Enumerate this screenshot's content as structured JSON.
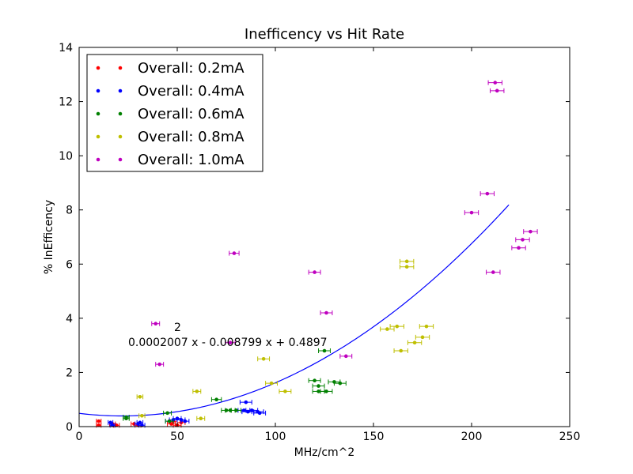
{
  "chart_data": {
    "type": "scatter",
    "title": "Inefficency vs Hit Rate",
    "xlabel": "MHz/cm^2",
    "ylabel": "% InEfficency",
    "xlim": [
      0,
      250
    ],
    "ylim": [
      0,
      14
    ],
    "xticks": [
      "0",
      "50",
      "100",
      "150",
      "200",
      "250"
    ],
    "yticks": [
      "0",
      "2",
      "4",
      "6",
      "8",
      "10",
      "12",
      "14"
    ],
    "grid": false,
    "legend_position": "top-left",
    "annotation": {
      "exponent": "2",
      "equation": "0.0002007 x - 0.008799 x + 0.4897"
    },
    "fit": {
      "coefficients": [
        0.0002007,
        -0.008799,
        0.4897
      ],
      "x_range": [
        0,
        219
      ],
      "color": "#0000ff"
    },
    "series": [
      {
        "name": "Overall: 0.2mA",
        "color": "#ff0000",
        "points": [
          [
            10,
            0.2
          ],
          [
            10,
            0.05
          ],
          [
            17,
            0.1
          ],
          [
            19,
            0.05
          ],
          [
            28,
            0.1
          ],
          [
            30,
            0.05
          ],
          [
            47,
            0.1
          ],
          [
            48,
            0.2
          ],
          [
            50,
            0.05
          ],
          [
            52,
            0.15
          ]
        ],
        "xerr": [
          1.2,
          1.2,
          1.5,
          1.5,
          1.5,
          1.5,
          2,
          2,
          2,
          2
        ]
      },
      {
        "name": "Overall: 0.4mA",
        "color": "#0000ff",
        "points": [
          [
            16,
            0.15
          ],
          [
            17,
            0.05
          ],
          [
            30,
            0.1
          ],
          [
            31,
            0.15
          ],
          [
            32,
            0.05
          ],
          [
            46,
            0.2
          ],
          [
            48,
            0.25
          ],
          [
            50,
            0.3
          ],
          [
            52,
            0.25
          ],
          [
            54,
            0.2
          ],
          [
            84,
            0.6
          ],
          [
            86,
            0.55
          ],
          [
            88,
            0.6
          ],
          [
            91,
            0.55
          ],
          [
            92,
            0.5
          ],
          [
            85,
            0.9
          ]
        ],
        "xerr": [
          1.2,
          1.2,
          1.5,
          1.5,
          1.5,
          2,
          2,
          2,
          2,
          2,
          3,
          3,
          3,
          3,
          3,
          3
        ]
      },
      {
        "name": "Overall: 0.6mA",
        "color": "#008000",
        "points": [
          [
            24,
            0.35
          ],
          [
            24,
            0.3
          ],
          [
            45,
            0.5
          ],
          [
            46,
            0.2
          ],
          [
            70,
            1.0
          ],
          [
            75,
            0.6
          ],
          [
            77,
            0.6
          ],
          [
            80,
            0.6
          ],
          [
            120,
            1.7
          ],
          [
            122,
            1.5
          ],
          [
            122,
            1.3
          ],
          [
            125,
            2.8
          ],
          [
            126,
            1.3
          ],
          [
            130,
            1.65
          ],
          [
            133,
            1.6
          ]
        ],
        "xerr": [
          1.5,
          1.5,
          2,
          2,
          2.5,
          2.5,
          2.5,
          2.5,
          3,
          3,
          3,
          3,
          3,
          3,
          3
        ]
      },
      {
        "name": "Overall: 0.8mA",
        "color": "#bfbf00",
        "points": [
          [
            31,
            1.1
          ],
          [
            32,
            0.4
          ],
          [
            60,
            1.3
          ],
          [
            62,
            0.3
          ],
          [
            94,
            2.5
          ],
          [
            98,
            1.6
          ],
          [
            105,
            1.3
          ],
          [
            157,
            3.6
          ],
          [
            162,
            3.7
          ],
          [
            164,
            2.8
          ],
          [
            167,
            6.1
          ],
          [
            167,
            5.9
          ],
          [
            171,
            3.1
          ],
          [
            175,
            3.3
          ],
          [
            177,
            3.7
          ]
        ],
        "xerr": [
          1.5,
          1.5,
          2,
          2,
          3,
          3,
          3,
          3.5,
          3.5,
          3.5,
          3.5,
          3.5,
          3.5,
          3.5,
          3.5
        ]
      },
      {
        "name": "Overall: 1.0mA",
        "color": "#bf00bf",
        "points": [
          [
            39,
            3.8
          ],
          [
            41,
            2.3
          ],
          [
            77,
            3.1
          ],
          [
            79,
            6.4
          ],
          [
            120,
            5.7
          ],
          [
            126,
            4.2
          ],
          [
            136,
            2.6
          ],
          [
            200,
            7.9
          ],
          [
            208,
            8.6
          ],
          [
            211,
            5.7
          ],
          [
            212,
            12.7
          ],
          [
            213,
            12.4
          ],
          [
            224,
            6.6
          ],
          [
            226,
            6.9
          ],
          [
            230,
            7.2
          ]
        ],
        "xerr": [
          2,
          2,
          2.5,
          2.5,
          3,
          3,
          3,
          3.5,
          3.5,
          3.5,
          3.5,
          3.5,
          3.5,
          3.5,
          3.5
        ]
      }
    ]
  }
}
